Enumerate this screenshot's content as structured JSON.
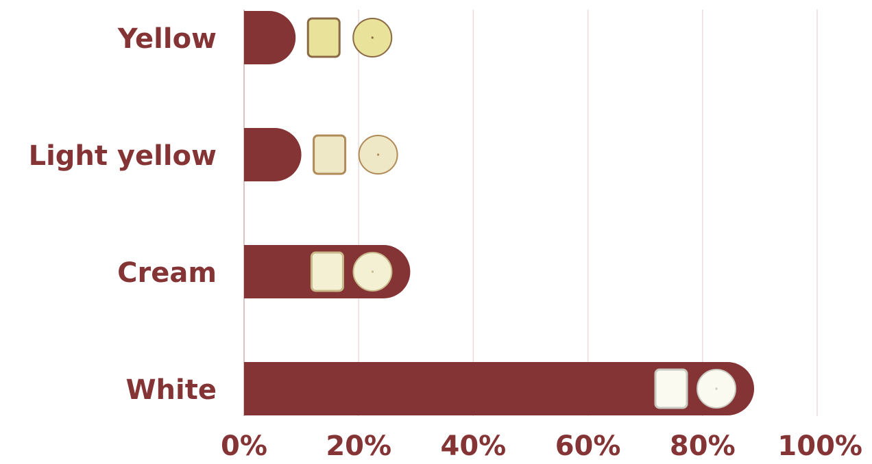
{
  "chart_data": {
    "type": "bar",
    "orientation": "horizontal",
    "categories": [
      "Yellow",
      "Light yellow",
      "Cream",
      "White"
    ],
    "values": [
      9,
      10,
      29,
      89
    ],
    "unit": "%",
    "xlim": [
      0,
      100
    ],
    "x_ticks": [
      "0%",
      "20%",
      "40%",
      "60%",
      "80%",
      "100%"
    ],
    "x_tick_values": [
      0,
      20,
      40,
      60,
      80,
      100
    ],
    "grid": true,
    "legend": "none",
    "title": "",
    "xlabel": "",
    "ylabel": "",
    "colors": {
      "bar": "#853436",
      "text": "#853436",
      "grid": "#ecdcdc",
      "axis": "#d9c4c4"
    },
    "bar_decorations": [
      {
        "category": "Yellow",
        "flesh": "#e9e29a",
        "skin": "#8a6a45"
      },
      {
        "category": "Light yellow",
        "flesh": "#efe8c6",
        "skin": "#b08a57"
      },
      {
        "category": "Cream",
        "flesh": "#f4f0d4",
        "skin": "#c8b88a"
      },
      {
        "category": "White",
        "flesh": "#fbfaf0",
        "skin": "#c9c9c0"
      }
    ]
  }
}
